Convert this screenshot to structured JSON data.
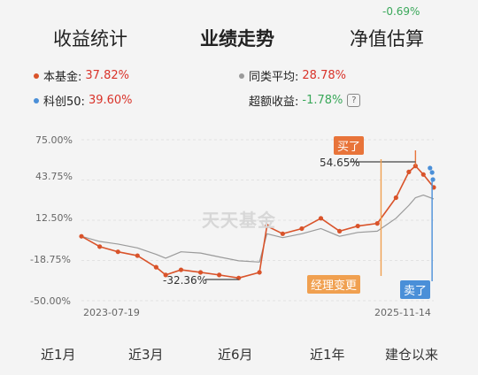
{
  "header": {
    "tabs": [
      {
        "label": "收益统计"
      },
      {
        "label": "业绩走势"
      },
      {
        "label": "净值估算"
      }
    ],
    "estimate_change": "-0.69%"
  },
  "legend": {
    "fund_label": "本基金:",
    "fund_value": "37.82%",
    "peer_label": "同类平均:",
    "peer_value": "28.78%",
    "index_label": "科创50:",
    "index_value": "39.60%",
    "excess_label": "超额收益:",
    "excess_value": "-1.78%",
    "info_icon": "?"
  },
  "colors": {
    "fund": "#d9532a",
    "peer": "#9a9a9a",
    "index": "#4a8fd8",
    "positive": "#d9332a",
    "negative": "#3aa85a",
    "buy_tag": "#e8743a",
    "manager_tag": "#f0a050",
    "sell_tag": "#4a8fd8"
  },
  "chart_data": {
    "type": "line",
    "y_tick_labels": [
      "75.00%",
      "43.75%",
      "12.50%",
      "-18.75%",
      "-50.00%"
    ],
    "ylim": [
      -50,
      75
    ],
    "x_tick_labels": [
      "2023-07-19",
      "2025-11-14"
    ],
    "xlim": [
      "2023-07-19",
      "2025-11-14"
    ],
    "series": [
      {
        "name": "本基金",
        "x": [
          "2023-07-19",
          "2023-09-01",
          "2023-10-15",
          "2023-12-01",
          "2024-01-15",
          "2024-02-07",
          "2024-03-15",
          "2024-05-01",
          "2024-06-15",
          "2024-08-01",
          "2024-09-20",
          "2024-10-08",
          "2024-11-15",
          "2024-12-31",
          "2025-02-15",
          "2025-04-01",
          "2025-05-15",
          "2025-07-01",
          "2025-08-15",
          "2025-09-15",
          "2025-10-01",
          "2025-10-20",
          "2025-11-14"
        ],
        "values": [
          0,
          -8,
          -12,
          -15,
          -24,
          -30,
          -26,
          -28,
          -30,
          -32.36,
          -28,
          8,
          2,
          6,
          14,
          4,
          8,
          10,
          30,
          50,
          54.65,
          48,
          38
        ]
      },
      {
        "name": "同类平均",
        "x": [
          "2023-07-19",
          "2023-09-01",
          "2023-10-15",
          "2023-12-01",
          "2024-01-15",
          "2024-02-07",
          "2024-03-15",
          "2024-05-01",
          "2024-06-15",
          "2024-08-01",
          "2024-09-20",
          "2024-10-08",
          "2024-11-15",
          "2024-12-31",
          "2025-02-15",
          "2025-04-01",
          "2025-05-15",
          "2025-07-01",
          "2025-08-15",
          "2025-09-15",
          "2025-10-01",
          "2025-10-20",
          "2025-11-14"
        ],
        "values": [
          0,
          -4,
          -6,
          -9,
          -14,
          -17,
          -12,
          -13,
          -16,
          -19,
          -20,
          2,
          -1,
          2,
          6,
          0,
          3,
          4,
          14,
          24,
          30,
          32,
          29
        ]
      }
    ],
    "markers": [
      {
        "type": "buy",
        "label": "买了",
        "value_label": "54.65%",
        "x": "2025-10-01",
        "y": 54.65
      },
      {
        "type": "manager_change",
        "label": "经理变更",
        "x": "2025-07-10"
      },
      {
        "type": "sell",
        "label": "卖了",
        "x": "2025-11-10"
      },
      {
        "type": "min",
        "value_label": "-32.36%",
        "x": "2024-08-01",
        "y": -32.36
      }
    ],
    "watermark": "天天基金"
  },
  "ranges": [
    {
      "label": "近1月"
    },
    {
      "label": "近3月"
    },
    {
      "label": "近6月"
    },
    {
      "label": "近1年"
    },
    {
      "label": "建仓以来"
    }
  ]
}
